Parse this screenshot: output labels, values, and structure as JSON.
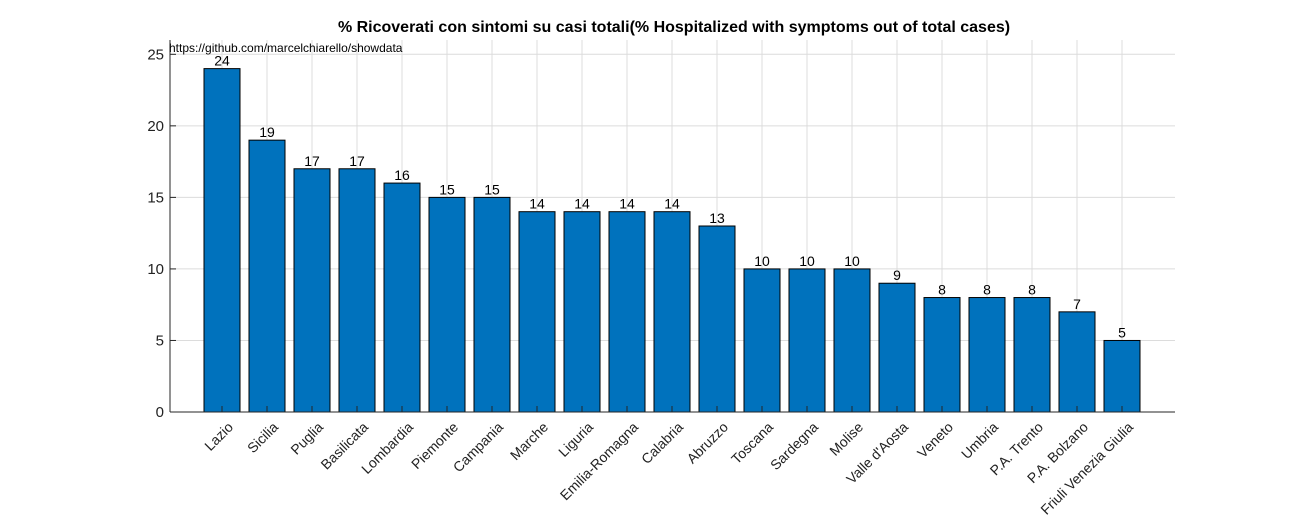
{
  "chart_data": {
    "type": "bar",
    "title": "% Ricoverati con sintomi su casi totali(% Hospitalized with symptoms out of total cases)",
    "annotation": "https://github.com/marcelchiarello/showdata",
    "categories": [
      "Lazio",
      "Sicilia",
      "Puglia",
      "Basilicata",
      "Lombardia",
      "Piemonte",
      "Campania",
      "Marche",
      "Liguria",
      "Emilia-Romagna",
      "Calabria",
      "Abruzzo",
      "Toscana",
      "Sardegna",
      "Molise",
      "Valle d'Aosta",
      "Veneto",
      "Umbria",
      "P.A. Trento",
      "P.A. Bolzano",
      "Friuli Venezia Giulia"
    ],
    "values": [
      24,
      19,
      17,
      17,
      16,
      15,
      15,
      14,
      14,
      14,
      14,
      13,
      10,
      10,
      10,
      9,
      8,
      8,
      8,
      7,
      5
    ],
    "data_labels": [
      "24",
      "19",
      "17",
      "17",
      "16",
      "15",
      "15",
      "14",
      "14",
      "14",
      "14",
      "13",
      "10",
      "10",
      "10",
      "9",
      "8",
      "8",
      "8",
      "7",
      "5"
    ],
    "yticks": [
      "0",
      "5",
      "10",
      "15",
      "20",
      "25"
    ],
    "ylim": [
      0,
      26
    ],
    "xlabel": "",
    "ylabel": "",
    "grid": true,
    "colors": {
      "bar": "#0072bd",
      "edge": "#000000",
      "grid": "#dcdcdc"
    }
  }
}
